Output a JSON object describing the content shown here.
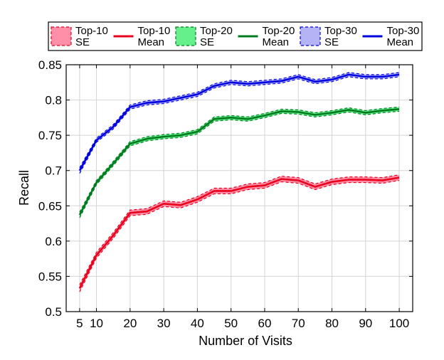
{
  "chart_data": {
    "type": "line",
    "title": "",
    "xlabel": "Number of Visits",
    "ylabel": "Recall",
    "xlim": [
      1,
      104
    ],
    "ylim": [
      0.5,
      0.85
    ],
    "x": [
      5,
      10,
      15,
      20,
      25,
      30,
      35,
      40,
      45,
      50,
      55,
      60,
      65,
      70,
      75,
      80,
      85,
      90,
      95,
      100
    ],
    "xticks": [
      5,
      10,
      20,
      30,
      40,
      50,
      60,
      70,
      80,
      90,
      100
    ],
    "xtick_labels": [
      "5",
      "10",
      "20",
      "30",
      "40",
      "50",
      "60",
      "70",
      "80",
      "90",
      "100"
    ],
    "yticks": [
      0.5,
      0.55,
      0.6,
      0.65,
      0.7,
      0.75,
      0.8,
      0.85
    ],
    "ytick_labels": [
      "0.5",
      "0.55",
      "0.6",
      "0.65",
      "0.7",
      "0.75",
      "0.8",
      "0.85"
    ],
    "grid": true,
    "legend_position": "top",
    "legend": [
      {
        "series": 0,
        "kind": "se",
        "line1": "Top-10",
        "line2": "SE"
      },
      {
        "series": 0,
        "kind": "mean",
        "line1": "Top-10",
        "line2": "Mean"
      },
      {
        "series": 1,
        "kind": "se",
        "line1": "Top-20",
        "line2": "SE"
      },
      {
        "series": 1,
        "kind": "mean",
        "line1": "Top-20",
        "line2": "Mean"
      },
      {
        "series": 2,
        "kind": "se",
        "line1": "Top-30",
        "line2": "SE"
      },
      {
        "series": 2,
        "kind": "mean",
        "line1": "Top-30",
        "line2": "Mean"
      }
    ],
    "series": [
      {
        "key": "top-10",
        "color": "#e8001c",
        "fill": "#ff8fa8",
        "mean": [
          0.533,
          0.58,
          0.608,
          0.64,
          0.642,
          0.653,
          0.651,
          0.659,
          0.671,
          0.671,
          0.677,
          0.679,
          0.688,
          0.686,
          0.677,
          0.684,
          0.687,
          0.687,
          0.686,
          0.69
        ],
        "se": [
          0.005,
          0.004,
          0.004,
          0.004,
          0.004,
          0.004,
          0.004,
          0.004,
          0.004,
          0.004,
          0.004,
          0.004,
          0.004,
          0.004,
          0.004,
          0.004,
          0.004,
          0.004,
          0.004,
          0.004
        ]
      },
      {
        "key": "top-20",
        "color": "#007a1f",
        "fill": "#66f08c",
        "mean": [
          0.637,
          0.683,
          0.71,
          0.738,
          0.745,
          0.748,
          0.75,
          0.755,
          0.773,
          0.775,
          0.773,
          0.778,
          0.784,
          0.783,
          0.779,
          0.782,
          0.786,
          0.782,
          0.785,
          0.787
        ],
        "se": [
          0.004,
          0.003,
          0.003,
          0.003,
          0.003,
          0.003,
          0.003,
          0.003,
          0.003,
          0.003,
          0.003,
          0.003,
          0.003,
          0.003,
          0.003,
          0.003,
          0.003,
          0.003,
          0.003,
          0.003
        ]
      },
      {
        "key": "top-30",
        "color": "#0000e0",
        "fill": "#b3b3f5",
        "mean": [
          0.7,
          0.743,
          0.762,
          0.79,
          0.796,
          0.798,
          0.803,
          0.808,
          0.82,
          0.825,
          0.823,
          0.825,
          0.827,
          0.833,
          0.826,
          0.829,
          0.836,
          0.833,
          0.833,
          0.836
        ],
        "se": [
          0.004,
          0.003,
          0.003,
          0.003,
          0.003,
          0.003,
          0.003,
          0.003,
          0.003,
          0.003,
          0.003,
          0.003,
          0.003,
          0.003,
          0.003,
          0.003,
          0.003,
          0.003,
          0.003,
          0.003
        ]
      }
    ]
  }
}
